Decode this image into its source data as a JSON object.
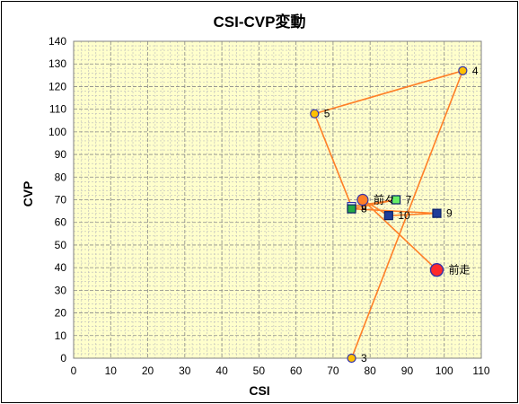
{
  "chart_data": {
    "type": "scatter",
    "title": "CSI-CVP変動",
    "xlabel": "CSI",
    "ylabel": "CVP",
    "xlim": [
      0,
      110
    ],
    "ylim": [
      0,
      140
    ],
    "x_ticks": [
      0,
      10,
      20,
      30,
      40,
      50,
      60,
      70,
      80,
      90,
      100,
      110
    ],
    "y_ticks": [
      0,
      10,
      20,
      30,
      40,
      50,
      60,
      70,
      80,
      90,
      100,
      110,
      120,
      130,
      140
    ],
    "grid": true,
    "colors": {
      "plot_background": "#ffffcc",
      "minor_grid": "#bbbbbb",
      "major_grid": "#888888",
      "line": "#ff7f27",
      "circle_fill": "#ffc000",
      "circle_edge": "#3333aa",
      "square_fill": "#1f3d99",
      "square_green": "#22aa44",
      "square_light_green": "#66ee66",
      "last_fill": "#ff2a2a",
      "prev_fill": "#ff7f27"
    },
    "path_order": [
      "3",
      "4",
      "5",
      "6",
      "7",
      "8",
      "9",
      "10",
      "前々",
      "前走"
    ],
    "points": [
      {
        "label": "3",
        "x": 75,
        "y": 0,
        "marker": "circle"
      },
      {
        "label": "4",
        "x": 105,
        "y": 127,
        "marker": "circle"
      },
      {
        "label": "5",
        "x": 65,
        "y": 108,
        "marker": "circle"
      },
      {
        "label": "6",
        "x": 75,
        "y": 67,
        "marker": "square-outline"
      },
      {
        "label": "7",
        "x": 87,
        "y": 70,
        "marker": "square-light-green"
      },
      {
        "label": "8",
        "x": 75,
        "y": 66,
        "marker": "square-green"
      },
      {
        "label": "9",
        "x": 98,
        "y": 64,
        "marker": "square"
      },
      {
        "label": "10",
        "x": 85,
        "y": 63,
        "marker": "square"
      },
      {
        "label": "前々",
        "x": 78,
        "y": 70,
        "marker": "circle-prev"
      },
      {
        "label": "前走",
        "x": 98,
        "y": 39,
        "marker": "circle-last"
      }
    ]
  }
}
